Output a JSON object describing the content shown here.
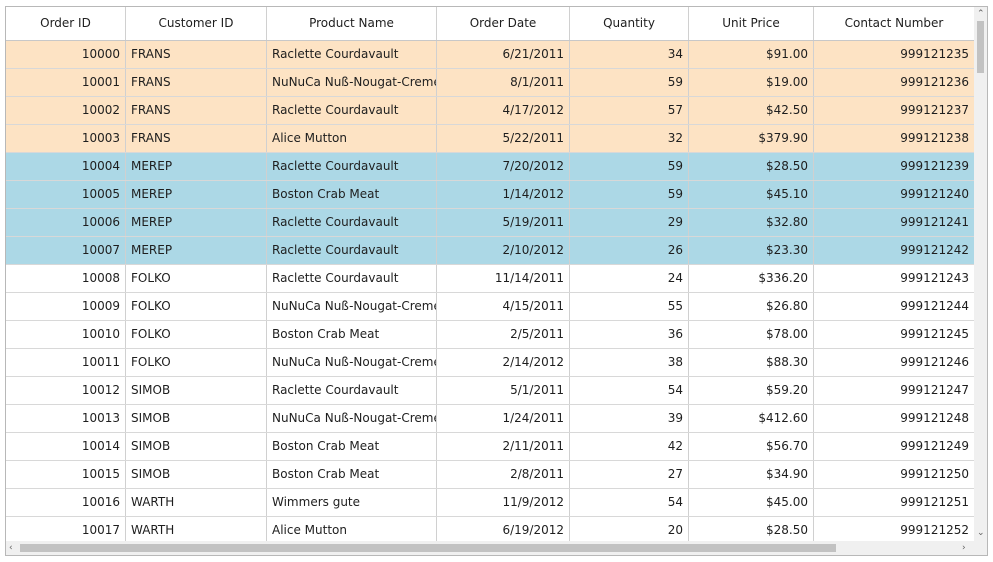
{
  "columns": [
    "Order ID",
    "Customer ID",
    "Product Name",
    "Order Date",
    "Quantity",
    "Unit Price",
    "Contact Number"
  ],
  "colors": {
    "orange_row": "#fde3c4",
    "blue_row": "#acd8e6"
  },
  "rows": [
    {
      "order_id": "10000",
      "customer_id": "FRANS",
      "product": "Raclette Courdavault",
      "date": "6/21/2011",
      "qty": "34",
      "price": "$91.00",
      "contact": "999121235",
      "style": "orange"
    },
    {
      "order_id": "10001",
      "customer_id": "FRANS",
      "product": "NuNuCa Nuß-Nougat-Creme",
      "date": "8/1/2011",
      "qty": "59",
      "price": "$19.00",
      "contact": "999121236",
      "style": "orange"
    },
    {
      "order_id": "10002",
      "customer_id": "FRANS",
      "product": "Raclette Courdavault",
      "date": "4/17/2012",
      "qty": "57",
      "price": "$42.50",
      "contact": "999121237",
      "style": "orange"
    },
    {
      "order_id": "10003",
      "customer_id": "FRANS",
      "product": "Alice Mutton",
      "date": "5/22/2011",
      "qty": "32",
      "price": "$379.90",
      "contact": "999121238",
      "style": "orange"
    },
    {
      "order_id": "10004",
      "customer_id": "MEREP",
      "product": "Raclette Courdavault",
      "date": "7/20/2012",
      "qty": "59",
      "price": "$28.50",
      "contact": "999121239",
      "style": "blue"
    },
    {
      "order_id": "10005",
      "customer_id": "MEREP",
      "product": "Boston Crab Meat",
      "date": "1/14/2012",
      "qty": "59",
      "price": "$45.10",
      "contact": "999121240",
      "style": "blue"
    },
    {
      "order_id": "10006",
      "customer_id": "MEREP",
      "product": "Raclette Courdavault",
      "date": "5/19/2011",
      "qty": "29",
      "price": "$32.80",
      "contact": "999121241",
      "style": "blue"
    },
    {
      "order_id": "10007",
      "customer_id": "MEREP",
      "product": "Raclette Courdavault",
      "date": "2/10/2012",
      "qty": "26",
      "price": "$23.30",
      "contact": "999121242",
      "style": "blue"
    },
    {
      "order_id": "10008",
      "customer_id": "FOLKO",
      "product": "Raclette Courdavault",
      "date": "11/14/2011",
      "qty": "24",
      "price": "$336.20",
      "contact": "999121243",
      "style": "plain"
    },
    {
      "order_id": "10009",
      "customer_id": "FOLKO",
      "product": "NuNuCa Nuß-Nougat-Creme",
      "date": "4/15/2011",
      "qty": "55",
      "price": "$26.80",
      "contact": "999121244",
      "style": "plain"
    },
    {
      "order_id": "10010",
      "customer_id": "FOLKO",
      "product": "Boston Crab Meat",
      "date": "2/5/2011",
      "qty": "36",
      "price": "$78.00",
      "contact": "999121245",
      "style": "plain"
    },
    {
      "order_id": "10011",
      "customer_id": "FOLKO",
      "product": "NuNuCa Nuß-Nougat-Creme",
      "date": "2/14/2012",
      "qty": "38",
      "price": "$88.30",
      "contact": "999121246",
      "style": "plain"
    },
    {
      "order_id": "10012",
      "customer_id": "SIMOB",
      "product": "Raclette Courdavault",
      "date": "5/1/2011",
      "qty": "54",
      "price": "$59.20",
      "contact": "999121247",
      "style": "plain"
    },
    {
      "order_id": "10013",
      "customer_id": "SIMOB",
      "product": "NuNuCa Nuß-Nougat-Creme",
      "date": "1/24/2011",
      "qty": "39",
      "price": "$412.60",
      "contact": "999121248",
      "style": "plain"
    },
    {
      "order_id": "10014",
      "customer_id": "SIMOB",
      "product": "Boston Crab Meat",
      "date": "2/11/2011",
      "qty": "42",
      "price": "$56.70",
      "contact": "999121249",
      "style": "plain"
    },
    {
      "order_id": "10015",
      "customer_id": "SIMOB",
      "product": "Boston Crab Meat",
      "date": "2/8/2011",
      "qty": "27",
      "price": "$34.90",
      "contact": "999121250",
      "style": "plain"
    },
    {
      "order_id": "10016",
      "customer_id": "WARTH",
      "product": "Wimmers gute",
      "date": "11/9/2012",
      "qty": "54",
      "price": "$45.00",
      "contact": "999121251",
      "style": "plain"
    },
    {
      "order_id": "10017",
      "customer_id": "WARTH",
      "product": "Alice Mutton",
      "date": "6/19/2012",
      "qty": "20",
      "price": "$28.50",
      "contact": "999121252",
      "style": "plain"
    }
  ]
}
